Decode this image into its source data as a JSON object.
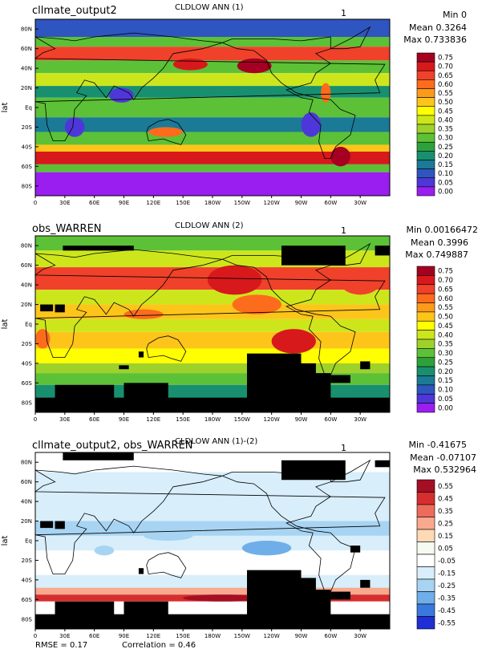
{
  "chart_data": [
    {
      "type": "heatmap",
      "run_name": "cllmate_output2",
      "title": "CLDLOW ANN (1)",
      "panel_number": "1",
      "stats": {
        "min": "Min 0",
        "mean": "Mean 0.3264",
        "max": "Max 0.733836"
      },
      "ylabel": "lat",
      "x_ticks": [
        "0",
        "30E",
        "60E",
        "90E",
        "120E",
        "150E",
        "180W",
        "150W",
        "120W",
        "90W",
        "60W",
        "30W"
      ],
      "y_ticks": [
        "80N",
        "60N",
        "40N",
        "20N",
        "Eq",
        "20S",
        "40S",
        "60S",
        "80S"
      ],
      "colorbar_labels": [
        "0.75",
        "0.70",
        "0.65",
        "0.60",
        "0.55",
        "0.50",
        "0.45",
        "0.40",
        "0.35",
        "0.30",
        "0.25",
        "0.20",
        "0.15",
        "0.10",
        "0.05",
        "0.00"
      ],
      "colorbar_colors": [
        "#a50021",
        "#d7191c",
        "#f0412a",
        "#fd6b1c",
        "#fe9a1a",
        "#fdc51a",
        "#ffff00",
        "#cde61b",
        "#9ed22a",
        "#5cc136",
        "#2ea23a",
        "#18906f",
        "#1b7a96",
        "#2f55c0",
        "#4e37d8",
        "#9a1ef0"
      ]
    },
    {
      "type": "heatmap",
      "run_name": "obs_WARREN",
      "title": "CLDLOW ANN (2)",
      "panel_number": "1",
      "stats": {
        "min": "Min 0.00166472",
        "mean": "Mean 0.3996",
        "max": "Max 0.749887"
      },
      "ylabel": "lat",
      "x_ticks": [
        "0",
        "30E",
        "60E",
        "90E",
        "120E",
        "150E",
        "180W",
        "150W",
        "120W",
        "90W",
        "60W",
        "30W"
      ],
      "y_ticks": [
        "80N",
        "60N",
        "40N",
        "20N",
        "Eq",
        "20S",
        "40S",
        "60S",
        "80S"
      ],
      "colorbar_labels": [
        "0.75",
        "0.70",
        "0.65",
        "0.60",
        "0.55",
        "0.50",
        "0.45",
        "0.40",
        "0.35",
        "0.30",
        "0.25",
        "0.20",
        "0.15",
        "0.10",
        "0.05",
        "0.00"
      ],
      "colorbar_colors": [
        "#a50021",
        "#d7191c",
        "#f0412a",
        "#fd6b1c",
        "#fe9a1a",
        "#fdc51a",
        "#ffff00",
        "#cde61b",
        "#9ed22a",
        "#5cc136",
        "#2ea23a",
        "#18906f",
        "#1b7a96",
        "#2f55c0",
        "#4e37d8",
        "#9a1ef0"
      ]
    },
    {
      "type": "heatmap",
      "run_name": "cllmate_output2, obs_WARREN",
      "title": "CLDLOW ANN (1)-(2)",
      "panel_number": "1",
      "stats": {
        "min": "Min -0.41675",
        "mean": "Mean -0.07107",
        "max": "Max 0.532964"
      },
      "ylabel": "lat",
      "x_ticks": [
        "0",
        "30E",
        "60E",
        "90E",
        "120E",
        "150E",
        "180W",
        "150W",
        "120W",
        "90W",
        "60W",
        "30W"
      ],
      "y_ticks": [
        "80N",
        "60N",
        "40N",
        "20N",
        "Eq",
        "20S",
        "40S",
        "60S",
        "80S"
      ],
      "colorbar_labels": [
        "0.55",
        "0.45",
        "0.35",
        "0.25",
        "0.15",
        "0.05",
        "-0.05",
        "-0.15",
        "-0.25",
        "-0.35",
        "-0.45",
        "-0.55"
      ],
      "colorbar_colors": [
        "#a50f24",
        "#d62e2e",
        "#ee6a5a",
        "#f8a98e",
        "#fdd9b4",
        "#f5fbf0",
        "#ffffff",
        "#d8eefa",
        "#a8d4f3",
        "#6faee9",
        "#3a78dd",
        "#1f2fd3"
      ],
      "footer": {
        "rmse": "RMSE = 0.17",
        "correlation": "Correlation = 0.46"
      }
    }
  ]
}
